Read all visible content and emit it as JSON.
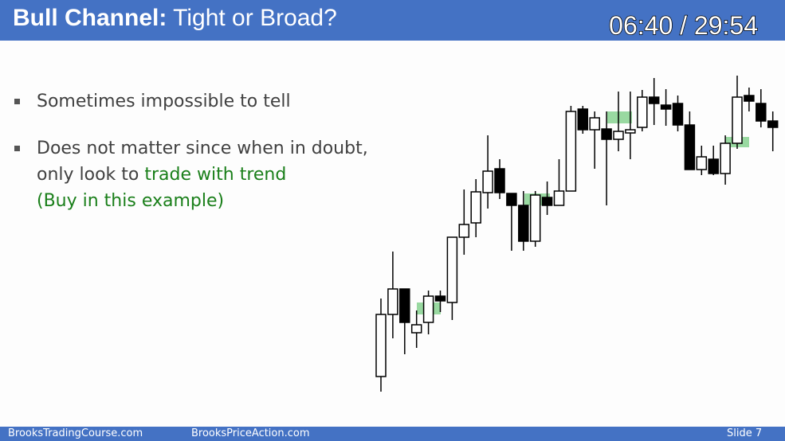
{
  "header": {
    "title_bold": "Bull Channel:",
    "title_rest": "Tight or Broad?",
    "timer": "06:40 / 29:54"
  },
  "bullets": [
    {
      "text": "Sometimes impossible to tell"
    },
    {
      "line1": "Does not matter since when in doubt,",
      "line2_plain": "only look to",
      "line2_green": "trade with trend",
      "line3_green": "(Buy in this example)"
    }
  ],
  "footer": {
    "site1": "BrooksTradingCourse.com",
    "site2": "BrooksPriceAction.com",
    "slide": "Slide  7"
  }
}
